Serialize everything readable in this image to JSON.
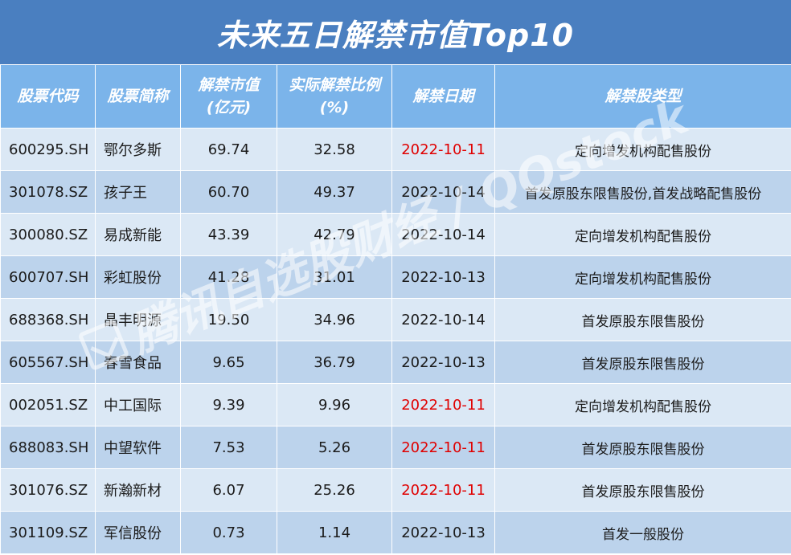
{
  "title": "未来五日解禁市值Top10",
  "headers": {
    "code": "股票代码",
    "name": "股票简称",
    "value_line1": "解禁市值",
    "value_line2": "(亿元)",
    "ratio_line1": "实际解禁比例",
    "ratio_line2": "(%)",
    "date": "解禁日期",
    "type": "解禁股类型"
  },
  "rows": [
    {
      "code": "600295.SH",
      "name": "鄂尔多斯",
      "value": "69.74",
      "ratio": "32.58",
      "date": "2022-10-11",
      "type": "定向增发机构配售股份"
    },
    {
      "code": "301078.SZ",
      "name": "孩子王",
      "value": "60.70",
      "ratio": "49.37",
      "date": "2022-10-14",
      "type": "首发原股东限售股份,首发战略配售股份"
    },
    {
      "code": "300080.SZ",
      "name": "易成新能",
      "value": "43.39",
      "ratio": "42.79",
      "date": "2022-10-14",
      "type": "定向增发机构配售股份"
    },
    {
      "code": "600707.SH",
      "name": "彩虹股份",
      "value": "41.28",
      "ratio": "31.01",
      "date": "2022-10-13",
      "type": "定向增发机构配售股份"
    },
    {
      "code": "688368.SH",
      "name": "晶丰明源",
      "value": "19.50",
      "ratio": "34.96",
      "date": "2022-10-14",
      "type": "首发原股东限售股份"
    },
    {
      "code": "605567.SH",
      "name": "春雪食品",
      "value": "9.65",
      "ratio": "36.79",
      "date": "2022-10-13",
      "type": "首发原股东限售股份"
    },
    {
      "code": "002051.SZ",
      "name": "中工国际",
      "value": "9.39",
      "ratio": "9.96",
      "date": "2022-10-11",
      "type": "定向增发机构配售股份"
    },
    {
      "code": "688083.SH",
      "name": "中望软件",
      "value": "7.53",
      "ratio": "5.26",
      "date": "2022-10-11",
      "type": "首发原股东限售股份"
    },
    {
      "code": "301076.SZ",
      "name": "新瀚新材",
      "value": "6.07",
      "ratio": "25.26",
      "date": "2022-10-11",
      "type": "首发原股东限售股份"
    },
    {
      "code": "301109.SZ",
      "name": "军信股份",
      "value": "0.73",
      "ratio": "1.14",
      "date": "2022-10-13",
      "type": "首发一般股份"
    }
  ],
  "highlight_date": "2022-10-11",
  "highlight_color": "#e00000",
  "watermark": "腾讯自选股财经 / QQstock"
}
